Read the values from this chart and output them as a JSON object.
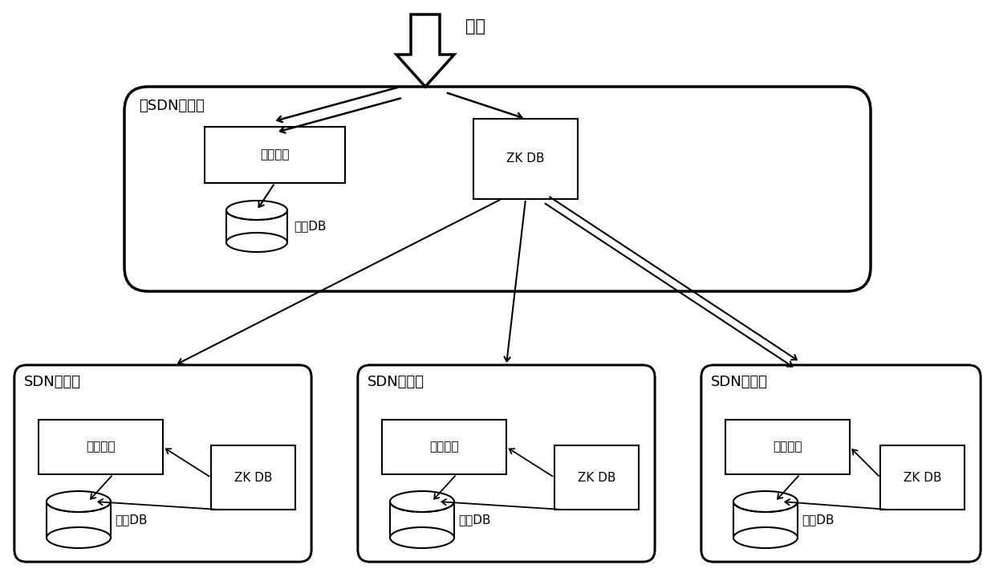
{
  "title": "数据",
  "bg_color": "#ffffff",
  "main_controller_label": "主SDN控制器",
  "sub_controller_label": "SDN控制器",
  "local_cache_label": "本地缓存",
  "local_db_label": "本地DB",
  "zkdb_label": "ZK DB",
  "font_size_title": 15,
  "font_size_main_box": 13,
  "font_size_sub_box": 13,
  "font_size_small": 11
}
